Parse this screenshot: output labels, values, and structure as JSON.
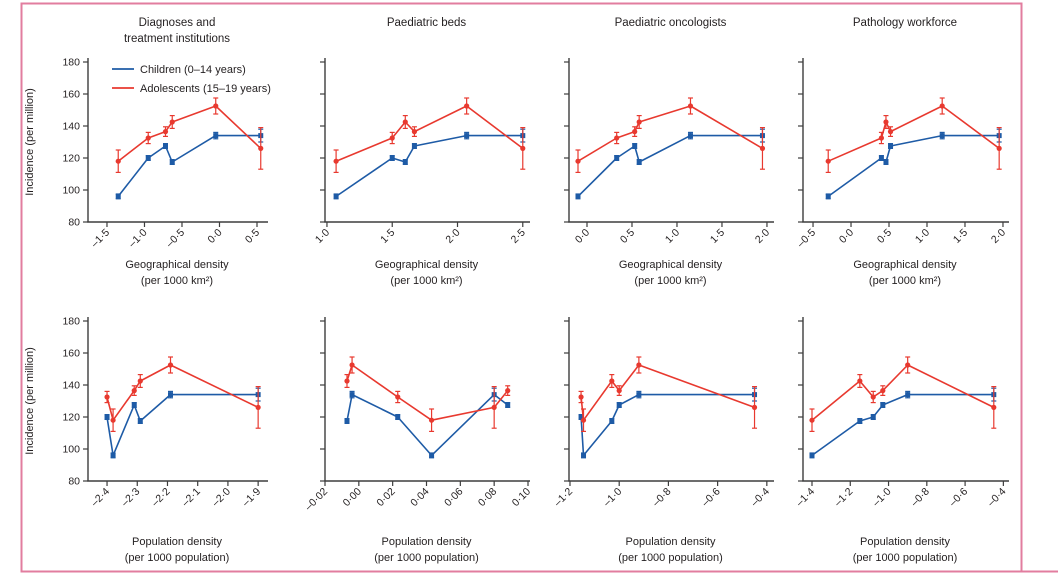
{
  "figure": {
    "colors": {
      "children": "#1e5ba6",
      "adolescents": "#e8392f",
      "axis": "#3d3d3d",
      "text": "#231f20",
      "frame": "#e27d9f"
    },
    "legend": {
      "items": [
        {
          "key": "children",
          "label": "Children (0–14 years)"
        },
        {
          "key": "adolescents",
          "label": "Adolescents (15–19 years)"
        }
      ]
    },
    "shared_ylabel": "Incidence (per million)",
    "top_row_xlabel": "Geographical density (per 1000 km²)",
    "bottom_row_xlabel": "Population density (per 1000 population)"
  },
  "chart_data": [
    {
      "type": "line",
      "title": "Diagnoses and treatment institutions",
      "title_lines": [
        "Diagnoses and",
        "treatment institutions"
      ],
      "xlabel": "Geographical density (per 1000 km²)",
      "xlabel_lines": [
        "Geographical density",
        "(per 1000 km²)"
      ],
      "ylabel": "Incidence (per million)",
      "show_ytick_labels": true,
      "ylim": [
        80,
        180
      ],
      "yticks": [
        80,
        100,
        120,
        140,
        160,
        180
      ],
      "xlim": [
        -1.753,
        0.62
      ],
      "xticks": [
        {
          "v": -1.5,
          "label": "–1·5"
        },
        {
          "v": -1.0,
          "label": "–1·0"
        },
        {
          "v": -0.5,
          "label": "–0·5"
        },
        {
          "v": 0.0,
          "label": "0·0"
        },
        {
          "v": 0.5,
          "label": "0·5"
        }
      ],
      "series": [
        {
          "key": "children",
          "name": "Children (0–14 years)",
          "marker": "square",
          "points": [
            [
              -1.35,
              96,
              1.5
            ],
            [
              -0.95,
              120,
              1.5
            ],
            [
              -0.72,
              127.5,
              1.5
            ],
            [
              -0.63,
              117.5,
              1.5
            ],
            [
              -0.05,
              134,
              2
            ],
            [
              0.55,
              134,
              4
            ]
          ]
        },
        {
          "key": "adolescents",
          "name": "Adolescents (15–19 years)",
          "marker": "circle",
          "points": [
            [
              -1.35,
              118,
              7
            ],
            [
              -0.95,
              132.5,
              3.5
            ],
            [
              -0.72,
              136.5,
              3
            ],
            [
              -0.63,
              142.5,
              4
            ],
            [
              -0.05,
              152.5,
              5
            ],
            [
              0.55,
              126,
              13
            ]
          ]
        }
      ]
    },
    {
      "type": "line",
      "title": "Paediatric beds",
      "title_lines": [
        "Paediatric beds"
      ],
      "xlabel": "Geographical density (per 1000 km²)",
      "xlabel_lines": [
        "Geographical density",
        "(per 1000 km²)"
      ],
      "ylabel": "",
      "show_ytick_labels": false,
      "ylim": [
        80,
        180
      ],
      "yticks": [
        80,
        100,
        120,
        140,
        160,
        180
      ],
      "xlim": [
        0.985,
        2.54
      ],
      "xticks": [
        {
          "v": 1.0,
          "label": "1·0"
        },
        {
          "v": 1.5,
          "label": "1·5"
        },
        {
          "v": 2.0,
          "label": "2·0"
        },
        {
          "v": 2.5,
          "label": "2·5"
        }
      ],
      "series": [
        {
          "key": "children",
          "name": "Children (0–14 years)",
          "marker": "square",
          "points": [
            [
              1.07,
              96,
              1.5
            ],
            [
              1.5,
              120,
              1.5
            ],
            [
              1.6,
              117.5,
              1.5
            ],
            [
              1.67,
              127.5,
              1.5
            ],
            [
              2.07,
              134,
              2
            ],
            [
              2.5,
              134,
              4
            ]
          ]
        },
        {
          "key": "adolescents",
          "name": "Adolescents (15–19 years)",
          "marker": "circle",
          "points": [
            [
              1.07,
              118,
              7
            ],
            [
              1.5,
              132.5,
              3.5
            ],
            [
              1.6,
              142.5,
              4
            ],
            [
              1.67,
              136.5,
              3
            ],
            [
              2.07,
              152.5,
              5
            ],
            [
              2.5,
              126,
              13
            ]
          ]
        }
      ]
    },
    {
      "type": "line",
      "title": "Paediatric oncologists",
      "title_lines": [
        "Paediatric oncologists"
      ],
      "xlabel": "Geographical density (per 1000 km²)",
      "xlabel_lines": [
        "Geographical density",
        "(per 1000 km²)"
      ],
      "ylabel": "",
      "show_ytick_labels": false,
      "ylim": [
        80,
        180
      ],
      "yticks": [
        80,
        100,
        120,
        140,
        160,
        180
      ],
      "xlim": [
        -0.2,
        2.056
      ],
      "xticks": [
        {
          "v": 0.0,
          "label": "0·0"
        },
        {
          "v": 0.5,
          "label": "0·5"
        },
        {
          "v": 1.0,
          "label": "1·0"
        },
        {
          "v": 1.5,
          "label": "1·5"
        },
        {
          "v": 2.0,
          "label": "2·0"
        }
      ],
      "series": [
        {
          "key": "children",
          "name": "Children (0–14 years)",
          "marker": "square",
          "points": [
            [
              -0.1,
              96,
              1.5
            ],
            [
              0.33,
              120,
              1.5
            ],
            [
              0.53,
              127.5,
              1.5
            ],
            [
              0.58,
              117.5,
              1.5
            ],
            [
              1.15,
              134,
              2
            ],
            [
              1.95,
              134,
              4
            ]
          ]
        },
        {
          "key": "adolescents",
          "name": "Adolescents (15–19 years)",
          "marker": "circle",
          "points": [
            [
              -0.1,
              118,
              7
            ],
            [
              0.33,
              132.5,
              3.5
            ],
            [
              0.53,
              136.5,
              3
            ],
            [
              0.58,
              142.5,
              4
            ],
            [
              1.15,
              152.5,
              5
            ],
            [
              1.95,
              126,
              13
            ]
          ]
        }
      ]
    },
    {
      "type": "line",
      "title": "Pathology workforce",
      "title_lines": [
        "Pathology workforce"
      ],
      "xlabel": "Geographical density (per 1000 km²)",
      "xlabel_lines": [
        "Geographical density",
        "(per 1000 km²)"
      ],
      "ylabel": "",
      "show_ytick_labels": false,
      "ylim": [
        80,
        180
      ],
      "yticks": [
        80,
        100,
        120,
        140,
        160,
        180
      ],
      "xlim": [
        -0.632,
        2.053
      ],
      "xticks": [
        {
          "v": -0.5,
          "label": "–0·5"
        },
        {
          "v": 0.0,
          "label": "0·0"
        },
        {
          "v": 0.5,
          "label": "0·5"
        },
        {
          "v": 1.0,
          "label": "1·0"
        },
        {
          "v": 1.5,
          "label": "1·5"
        },
        {
          "v": 2.0,
          "label": "2·0"
        }
      ],
      "series": [
        {
          "key": "children",
          "name": "Children (0–14 years)",
          "marker": "square",
          "points": [
            [
              -0.3,
              96,
              1.5
            ],
            [
              0.4,
              120,
              1.5
            ],
            [
              0.46,
              117.5,
              1.5
            ],
            [
              0.52,
              127.5,
              1.5
            ],
            [
              1.2,
              134,
              2
            ],
            [
              1.95,
              134,
              4
            ]
          ]
        },
        {
          "key": "adolescents",
          "name": "Adolescents (15–19 years)",
          "marker": "circle",
          "points": [
            [
              -0.3,
              118,
              7
            ],
            [
              0.4,
              132.5,
              3.5
            ],
            [
              0.46,
              142.5,
              4
            ],
            [
              0.52,
              136.5,
              3
            ],
            [
              1.2,
              152.5,
              5
            ],
            [
              1.95,
              126,
              13
            ]
          ]
        }
      ]
    },
    {
      "type": "line",
      "title": "",
      "title_lines": [],
      "xlabel": "Population density (per 1000 population)",
      "xlabel_lines": [
        "Population density",
        "(per 1000 population)"
      ],
      "ylabel": "Incidence (per million)",
      "show_ytick_labels": true,
      "ylim": [
        80,
        180
      ],
      "yticks": [
        80,
        100,
        120,
        140,
        160,
        180
      ],
      "xlim": [
        -2.463,
        -1.874
      ],
      "xticks": [
        {
          "v": -2.4,
          "label": "–2·4"
        },
        {
          "v": -2.3,
          "label": "–2·3"
        },
        {
          "v": -2.2,
          "label": "–2·2"
        },
        {
          "v": -2.1,
          "label": "–2·1"
        },
        {
          "v": -2.0,
          "label": "–2·0"
        },
        {
          "v": -1.9,
          "label": "–1·9"
        }
      ],
      "series": [
        {
          "key": "children",
          "name": "Children (0–14 years)",
          "marker": "square",
          "points": [
            [
              -2.4,
              120,
              1.5
            ],
            [
              -2.38,
              96,
              1.5
            ],
            [
              -2.31,
              127.5,
              1.5
            ],
            [
              -2.29,
              117.5,
              1.5
            ],
            [
              -2.19,
              134,
              2
            ],
            [
              -1.9,
              134,
              4
            ]
          ]
        },
        {
          "key": "adolescents",
          "name": "Adolescents (15–19 years)",
          "marker": "circle",
          "points": [
            [
              -2.4,
              132.5,
              3.5
            ],
            [
              -2.38,
              118,
              7
            ],
            [
              -2.31,
              136.5,
              3
            ],
            [
              -2.29,
              142.5,
              4
            ],
            [
              -2.19,
              152.5,
              5
            ],
            [
              -1.9,
              126,
              13
            ]
          ]
        }
      ]
    },
    {
      "type": "line",
      "title": "",
      "title_lines": [],
      "xlabel": "Population density (per 1000 population)",
      "xlabel_lines": [
        "Population density",
        "(per 1000 population)"
      ],
      "ylabel": "",
      "show_ytick_labels": false,
      "ylim": [
        80,
        180
      ],
      "yticks": [
        80,
        100,
        120,
        140,
        160,
        180
      ],
      "xlim": [
        -0.02,
        0.1
      ],
      "xticks": [
        {
          "v": -0.02,
          "label": "–0·02"
        },
        {
          "v": 0.0,
          "label": "0·00"
        },
        {
          "v": 0.02,
          "label": "0·02"
        },
        {
          "v": 0.04,
          "label": "0·04"
        },
        {
          "v": 0.06,
          "label": "0·06"
        },
        {
          "v": 0.08,
          "label": "0·08"
        },
        {
          "v": 0.1,
          "label": "0·10"
        }
      ],
      "series": [
        {
          "key": "children",
          "name": "Children (0–14 years)",
          "marker": "square",
          "points": [
            [
              -0.007,
              117.5,
              1.5
            ],
            [
              -0.004,
              134,
              2
            ],
            [
              0.023,
              120,
              1.5
            ],
            [
              0.043,
              96,
              1.5
            ],
            [
              0.08,
              134,
              4
            ],
            [
              0.088,
              127.5,
              1.5
            ]
          ]
        },
        {
          "key": "adolescents",
          "name": "Adolescents (15–19 years)",
          "marker": "circle",
          "points": [
            [
              -0.007,
              142.5,
              4
            ],
            [
              -0.004,
              152.5,
              5
            ],
            [
              0.023,
              132.5,
              3.5
            ],
            [
              0.043,
              118,
              7
            ],
            [
              0.08,
              126,
              13
            ],
            [
              0.088,
              136.5,
              3
            ]
          ]
        }
      ]
    },
    {
      "type": "line",
      "title": "",
      "title_lines": [],
      "xlabel": "Population density (per 1000 population)",
      "xlabel_lines": [
        "Population density",
        "(per 1000 population)"
      ],
      "ylabel": "",
      "show_ytick_labels": false,
      "ylim": [
        80,
        180
      ],
      "yticks": [
        80,
        100,
        120,
        140,
        160,
        180
      ],
      "xlim": [
        -1.204,
        -0.379
      ],
      "xticks": [
        {
          "v": -1.2,
          "label": "–1·2"
        },
        {
          "v": -1.0,
          "label": "–1·0"
        },
        {
          "v": -0.8,
          "label": "–0·8"
        },
        {
          "v": -0.6,
          "label": "–0·6"
        },
        {
          "v": -0.4,
          "label": "–0·4"
        }
      ],
      "series": [
        {
          "key": "children",
          "name": "Children (0–14 years)",
          "marker": "square",
          "points": [
            [
              -1.155,
              120,
              1.5
            ],
            [
              -1.145,
              96,
              1.5
            ],
            [
              -1.03,
              117.5,
              1.5
            ],
            [
              -1.0,
              127.5,
              1.5
            ],
            [
              -0.92,
              134,
              2
            ],
            [
              -0.45,
              134,
              4
            ]
          ]
        },
        {
          "key": "adolescents",
          "name": "Adolescents (15–19 years)",
          "marker": "circle",
          "points": [
            [
              -1.155,
              132.5,
              3.5
            ],
            [
              -1.145,
              118,
              7
            ],
            [
              -1.03,
              142.5,
              4
            ],
            [
              -1.0,
              136.5,
              3
            ],
            [
              -0.92,
              152.5,
              5
            ],
            [
              -0.45,
              126,
              13
            ]
          ]
        }
      ]
    },
    {
      "type": "line",
      "title": "",
      "title_lines": [],
      "xlabel": "Population density (per 1000 population)",
      "xlabel_lines": [
        "Population density",
        "(per 1000 population)"
      ],
      "ylabel": "",
      "show_ytick_labels": false,
      "ylim": [
        80,
        180
      ],
      "yticks": [
        80,
        100,
        120,
        140,
        160,
        180
      ],
      "xlim": [
        -1.447,
        -0.381
      ],
      "xticks": [
        {
          "v": -1.4,
          "label": "–1·4"
        },
        {
          "v": -1.2,
          "label": "–1·2"
        },
        {
          "v": -1.0,
          "label": "–1·0"
        },
        {
          "v": -0.8,
          "label": "–0·8"
        },
        {
          "v": -0.6,
          "label": "–0·6"
        },
        {
          "v": -0.4,
          "label": "–0·4"
        }
      ],
      "series": [
        {
          "key": "children",
          "name": "Children (0–14 years)",
          "marker": "square",
          "points": [
            [
              -1.4,
              96,
              1.5
            ],
            [
              -1.15,
              117.5,
              1.5
            ],
            [
              -1.08,
              120,
              1.5
            ],
            [
              -1.03,
              127.5,
              1.5
            ],
            [
              -0.9,
              134,
              2
            ],
            [
              -0.45,
              134,
              4
            ]
          ]
        },
        {
          "key": "adolescents",
          "name": "Adolescents (15–19 years)",
          "marker": "circle",
          "points": [
            [
              -1.4,
              118,
              7
            ],
            [
              -1.15,
              142.5,
              4
            ],
            [
              -1.08,
              132.5,
              3.5
            ],
            [
              -1.03,
              136.5,
              3
            ],
            [
              -0.9,
              152.5,
              5
            ],
            [
              -0.45,
              126,
              13
            ]
          ]
        }
      ]
    }
  ]
}
